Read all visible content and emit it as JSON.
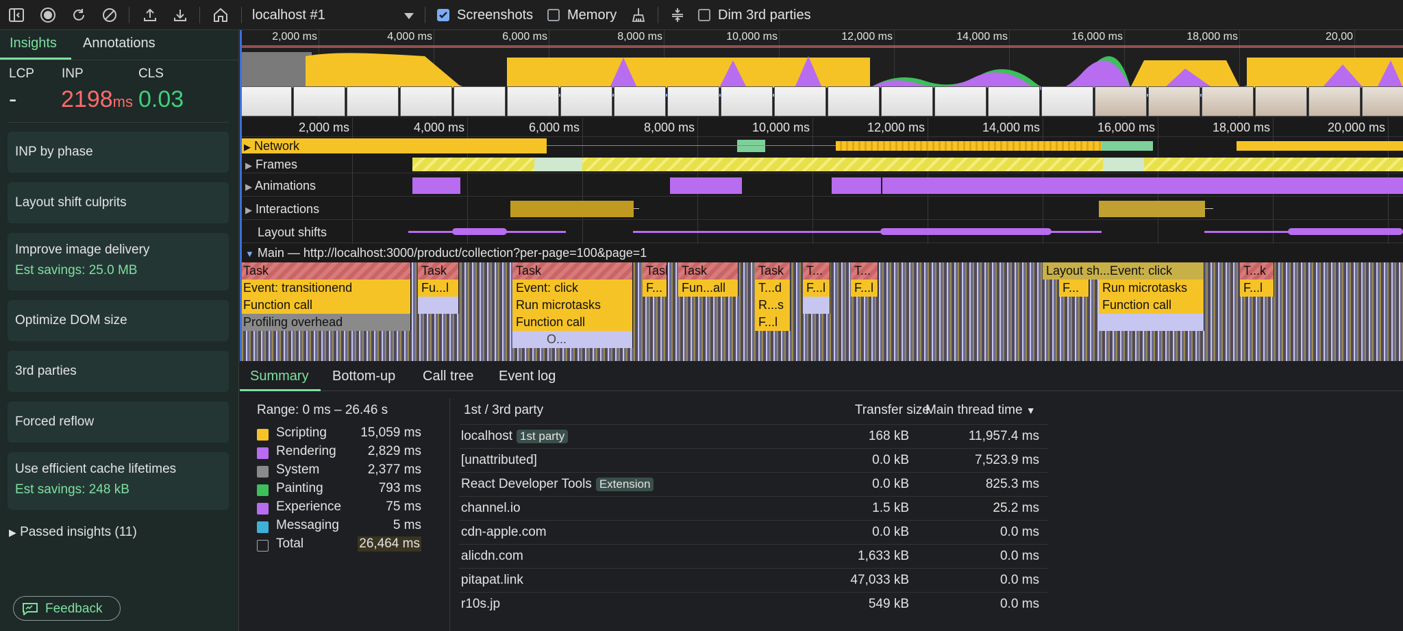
{
  "toolbar": {
    "target": "localhost #1",
    "screenshots_label": "Screenshots",
    "screenshots_checked": true,
    "memory_label": "Memory",
    "memory_checked": false,
    "dim_label": "Dim 3rd parties",
    "dim_checked": false
  },
  "sidebar": {
    "tabs": [
      "Insights",
      "Annotations"
    ],
    "metrics": {
      "lcp_label": "LCP",
      "lcp_value": "-",
      "inp_label": "INP",
      "inp_value": "2198",
      "inp_unit": "ms",
      "cls_label": "CLS",
      "cls_value": "0.03"
    },
    "cards": [
      {
        "title": "INP by phase",
        "sub": ""
      },
      {
        "title": "Layout shift culprits",
        "sub": ""
      },
      {
        "title": "Improve image delivery",
        "sub": "Est savings: 25.0 MB"
      },
      {
        "title": "Optimize DOM size",
        "sub": ""
      },
      {
        "title": "3rd parties",
        "sub": ""
      },
      {
        "title": "Forced reflow",
        "sub": ""
      },
      {
        "title": "Use efficient cache lifetimes",
        "sub": "Est savings: 248 kB"
      }
    ],
    "passed": "Passed insights (11)",
    "feedback": "Feedback"
  },
  "overview_ticks": [
    "2,000 ms",
    "4,000 ms",
    "6,000 ms",
    "8,000 ms",
    "10,000 ms",
    "12,000 ms",
    "14,000 ms",
    "16,000 ms",
    "18,000 ms",
    "20,00"
  ],
  "ruler_ticks": [
    "2,000 ms",
    "4,000 ms",
    "6,000 ms",
    "8,000 ms",
    "10,000 ms",
    "12,000 ms",
    "14,000 ms",
    "16,000 ms",
    "18,000 ms",
    "20,000 ms"
  ],
  "tracks": {
    "network": "Network",
    "frames": "Frames",
    "animations": "Animations",
    "interactions": "Interactions",
    "layout_shifts": "Layout shifts",
    "main": "Main — http://localhost:3000/product/collection?per-page=100&page=1"
  },
  "flame": {
    "row1": [
      "Task",
      "Task",
      "Task",
      "Task",
      "Task",
      "Task",
      "T...",
      "T...",
      "T...k"
    ],
    "row1_overlay": "Layout sh...Event: click",
    "row2": [
      "Event: transitionend",
      "Fu...l",
      "Event: click",
      "F...",
      "Fun...all",
      "T...d",
      "F...l",
      "F...l",
      "F...",
      "Run microtasks",
      "F...l"
    ],
    "row3": [
      "Function call",
      "Run microtasks",
      "R...s",
      "Function call"
    ],
    "row4": [
      "Profiling overhead",
      "Function call",
      "F...l"
    ],
    "row5": [
      "O..."
    ]
  },
  "bottom_tabs": [
    "Summary",
    "Bottom-up",
    "Call tree",
    "Event log"
  ],
  "summary": {
    "range": "Range: 0 ms – 26.46 s",
    "legend": [
      {
        "name": "Scripting",
        "value": "15,059 ms",
        "color": "#f6c327"
      },
      {
        "name": "Rendering",
        "value": "2,829 ms",
        "color": "#b86cf0"
      },
      {
        "name": "System",
        "value": "2,377 ms",
        "color": "#8a8a8a"
      },
      {
        "name": "Painting",
        "value": "793 ms",
        "color": "#3dbf5b"
      },
      {
        "name": "Experience",
        "value": "75 ms",
        "color": "#b86cf0"
      },
      {
        "name": "Messaging",
        "value": "5 ms",
        "color": "#3fb0d8"
      },
      {
        "name": "Total",
        "value": "26,464 ms",
        "color": "transparent"
      }
    ],
    "party_header": {
      "name": "1st / 3rd party",
      "transfer": "Transfer size",
      "main": "Main thread time"
    },
    "parties": [
      {
        "name": "localhost",
        "badge": "1st party",
        "transfer": "168 kB",
        "main": "11,957.4 ms"
      },
      {
        "name": "[unattributed]",
        "badge": "",
        "transfer": "0.0 kB",
        "main": "7,523.9 ms"
      },
      {
        "name": "React Developer Tools",
        "badge": "Extension",
        "transfer": "0.0 kB",
        "main": "825.3 ms"
      },
      {
        "name": "channel.io",
        "badge": "",
        "transfer": "1.5 kB",
        "main": "25.2 ms"
      },
      {
        "name": "cdn-apple.com",
        "badge": "",
        "transfer": "0.0 kB",
        "main": "0.0 ms"
      },
      {
        "name": "alicdn.com",
        "badge": "",
        "transfer": "1,633 kB",
        "main": "0.0 ms"
      },
      {
        "name": "pitapat.link",
        "badge": "",
        "transfer": "47,033 kB",
        "main": "0.0 ms"
      },
      {
        "name": "r10s.jp",
        "badge": "",
        "transfer": "549 kB",
        "main": "0.0 ms"
      }
    ]
  },
  "colors": {
    "accent": "#7ee0a0",
    "inp": "#ff6b6b",
    "cls": "#3fd07c",
    "scripting": "#f6c327",
    "rendering": "#b86cf0"
  }
}
